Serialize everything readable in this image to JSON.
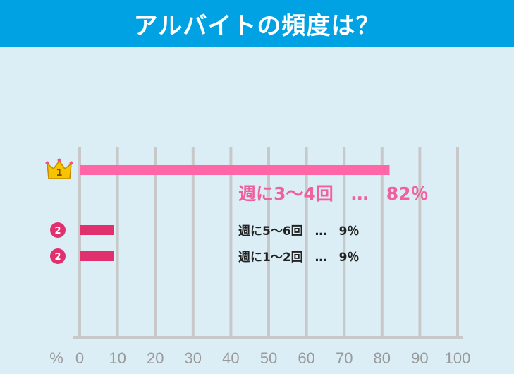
{
  "header": {
    "title": "アルバイトの頻度は？"
  },
  "chart_data": {
    "type": "bar",
    "orientation": "horizontal",
    "categories": [
      "週に3～4回",
      "週に5～6回",
      "週に1～2回"
    ],
    "values": [
      82,
      9,
      9
    ],
    "ranks": [
      "1",
      "2",
      "2"
    ],
    "labels": [
      "週に3～4回　…　82％",
      "週に5～6回　…　9％",
      "週に1～2回　…　9％"
    ],
    "xlim": [
      0,
      100
    ],
    "xticks": [
      0,
      10,
      20,
      30,
      40,
      50,
      60,
      70,
      80,
      90,
      100
    ],
    "xunit": "%",
    "grid": true,
    "colors": {
      "top": "#ff66a8",
      "rest": "#e0316e",
      "grid": "#c8c8c8",
      "crown": "#f7c400"
    }
  }
}
